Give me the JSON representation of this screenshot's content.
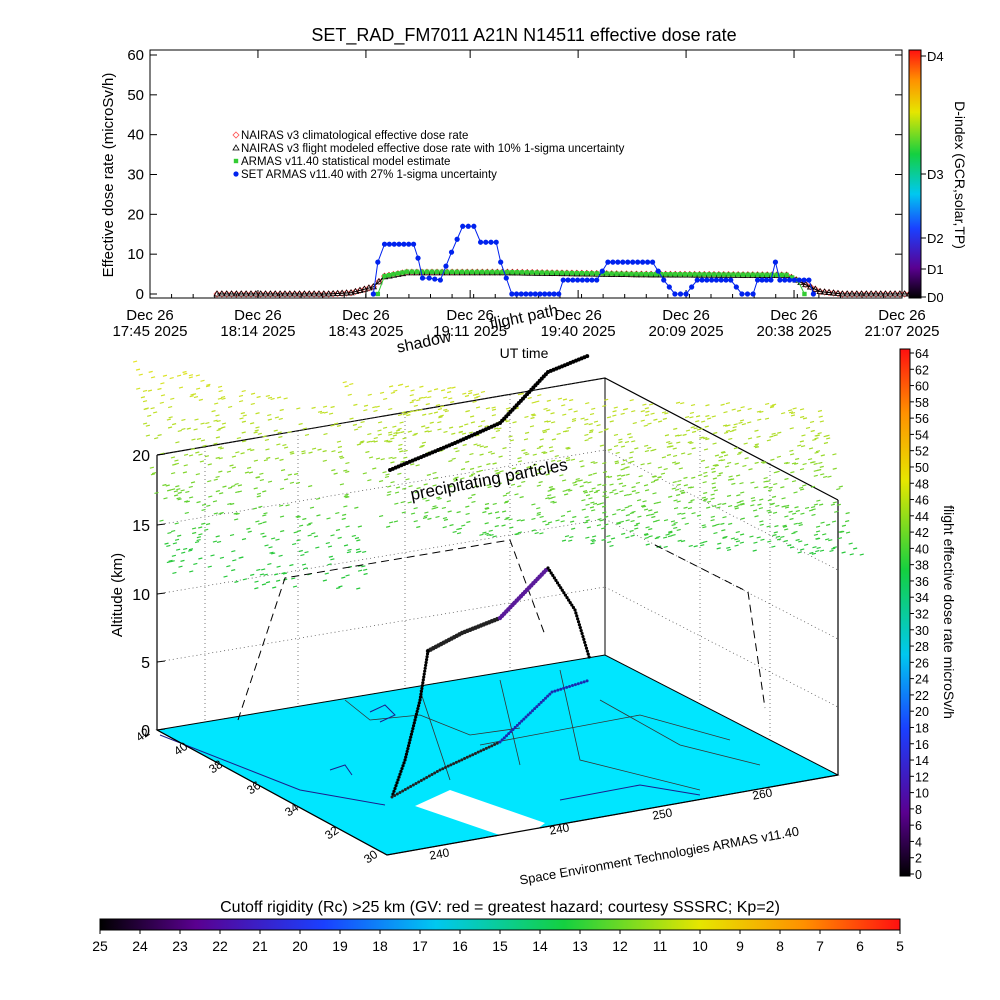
{
  "chart_data": [
    {
      "type": "line",
      "title": "SET_RAD_FM7011   A21N N14511 effective dose rate",
      "xlabel": "UT time",
      "ylabel": "Effective dose rate (microSv/h)",
      "ylim": [
        0,
        60
      ],
      "yticks": [
        "0",
        "10",
        "20",
        "30",
        "40",
        "50",
        "60"
      ],
      "xticks": [
        {
          "date": "Dec 26",
          "time": "17:45 2025",
          "h": 0
        },
        {
          "date": "Dec 26",
          "time": "18:14 2025",
          "h": 0.4833
        },
        {
          "date": "Dec 26",
          "time": "18:43 2025",
          "h": 0.9667
        },
        {
          "date": "Dec 26",
          "time": "19:11 2025",
          "h": 1.4333
        },
        {
          "date": "Dec 26",
          "time": "19:40 2025",
          "h": 1.9167
        },
        {
          "date": "Dec 26",
          "time": "20:09 2025",
          "h": 2.4
        },
        {
          "date": "Dec 26",
          "time": "20:38 2025",
          "h": 2.8833
        },
        {
          "date": "Dec 26",
          "time": "21:07 2025",
          "h": 3.3667
        }
      ],
      "legend": [
        {
          "label": "NAIRAS v3 climatological effective dose rate",
          "color": "#ff5050",
          "marker": "diamond"
        },
        {
          "label": "NAIRAS v3 flight modeled effective dose rate with 10% 1-sigma uncertainty",
          "color": "#000000",
          "marker": "triangle"
        },
        {
          "label": "ARMAS v11.40 statistical model estimate",
          "color": "#33cc33",
          "marker": "star"
        },
        {
          "label": "SET ARMAS v11.40 with 27% 1-sigma uncertainty",
          "color": "#0022ee",
          "marker": "dot"
        }
      ],
      "series": [
        {
          "name": "NAIRAS v3 climatological",
          "points": [
            [
              0.3,
              0
            ],
            [
              0.8,
              0
            ],
            [
              0.9,
              0.3
            ],
            [
              1.0,
              1.8
            ],
            [
              1.05,
              4.5
            ],
            [
              1.15,
              5.5
            ],
            [
              1.6,
              5.5
            ],
            [
              2.2,
              5.0
            ],
            [
              2.85,
              4.8
            ],
            [
              3.0,
              0.6
            ],
            [
              3.1,
              0
            ],
            [
              3.4,
              0
            ]
          ]
        },
        {
          "name": "NAIRAS v3 flight modeled",
          "points": [
            [
              0.3,
              0
            ],
            [
              0.8,
              0
            ],
            [
              0.9,
              0.3
            ],
            [
              1.0,
              1.8
            ],
            [
              1.05,
              4.3
            ],
            [
              1.15,
              5.3
            ],
            [
              1.6,
              5.3
            ],
            [
              2.2,
              4.8
            ],
            [
              2.85,
              4.6
            ],
            [
              3.0,
              0.6
            ],
            [
              3.1,
              0
            ],
            [
              3.4,
              0
            ]
          ]
        },
        {
          "name": "ARMAS v11.40 statistical",
          "points": [
            [
              1.02,
              0
            ],
            [
              1.05,
              4.5
            ],
            [
              1.15,
              5.6
            ],
            [
              1.6,
              5.5
            ],
            [
              2.2,
              5.0
            ],
            [
              2.85,
              4.8
            ],
            [
              2.9,
              3.5
            ],
            [
              2.93,
              0
            ]
          ]
        },
        {
          "name": "SET ARMAS v11.40",
          "points": [
            [
              1.0,
              0
            ],
            [
              1.02,
              8
            ],
            [
              1.05,
              12.5
            ],
            [
              1.18,
              12.5
            ],
            [
              1.2,
              9
            ],
            [
              1.22,
              4
            ],
            [
              1.25,
              4
            ],
            [
              1.3,
              3.5
            ],
            [
              1.35,
              10.5
            ],
            [
              1.4,
              17
            ],
            [
              1.45,
              17
            ],
            [
              1.48,
              13
            ],
            [
              1.55,
              13
            ],
            [
              1.57,
              8
            ],
            [
              1.62,
              0
            ],
            [
              1.83,
              0
            ],
            [
              1.85,
              3.5
            ],
            [
              2.0,
              3.5
            ],
            [
              2.05,
              8
            ],
            [
              2.25,
              8
            ],
            [
              2.3,
              3.5
            ],
            [
              2.35,
              0
            ],
            [
              2.4,
              0
            ],
            [
              2.45,
              3.5
            ],
            [
              2.6,
              3.5
            ],
            [
              2.65,
              0
            ],
            [
              2.7,
              0
            ],
            [
              2.72,
              3.5
            ],
            [
              2.78,
              3.5
            ],
            [
              2.8,
              8
            ],
            [
              2.82,
              3.5
            ],
            [
              2.95,
              3.5
            ],
            [
              2.97,
              0
            ]
          ]
        }
      ],
      "right_axis": {
        "label": "D-index (GCR,solar,TP)",
        "ticks": [
          "D0",
          "D1",
          "D2",
          "D3",
          "D4"
        ]
      }
    },
    {
      "type": "scatter",
      "xlabel": "Space Environment Technologies ARMAS v11.40",
      "ylabel": "Altitude (km)",
      "zticks": [
        "0",
        "5",
        "10",
        "15",
        "20"
      ],
      "lat_ticks": [
        "30",
        "32",
        "34",
        "36",
        "38",
        "40",
        "42"
      ],
      "lon_ticks_left": [
        "240"
      ],
      "lon_ticks_front": [
        "240",
        "250",
        "260"
      ],
      "annotations": [
        "precipitating particles",
        "shadow",
        "flight path"
      ],
      "colorbar": {
        "label": "flight effective dose rate microSv/h",
        "ticks": [
          "0",
          "2",
          "4",
          "6",
          "8",
          "10",
          "12",
          "14",
          "16",
          "18",
          "20",
          "22",
          "24",
          "26",
          "28",
          "30",
          "32",
          "34",
          "36",
          "38",
          "40",
          "42",
          "44",
          "46",
          "48",
          "50",
          "52",
          "54",
          "56",
          "58",
          "60",
          "62",
          "64"
        ]
      }
    },
    {
      "type": "heatmap",
      "title": "Cutoff rigidity (Rc) >25 km (GV: red = greatest hazard; courtesy SSSRC; Kp=2)",
      "ticks": [
        "25",
        "24",
        "23",
        "22",
        "21",
        "20",
        "19",
        "18",
        "17",
        "16",
        "15",
        "14",
        "13",
        "12",
        "11",
        "10",
        "9",
        "8",
        "7",
        "6",
        "5"
      ]
    }
  ]
}
